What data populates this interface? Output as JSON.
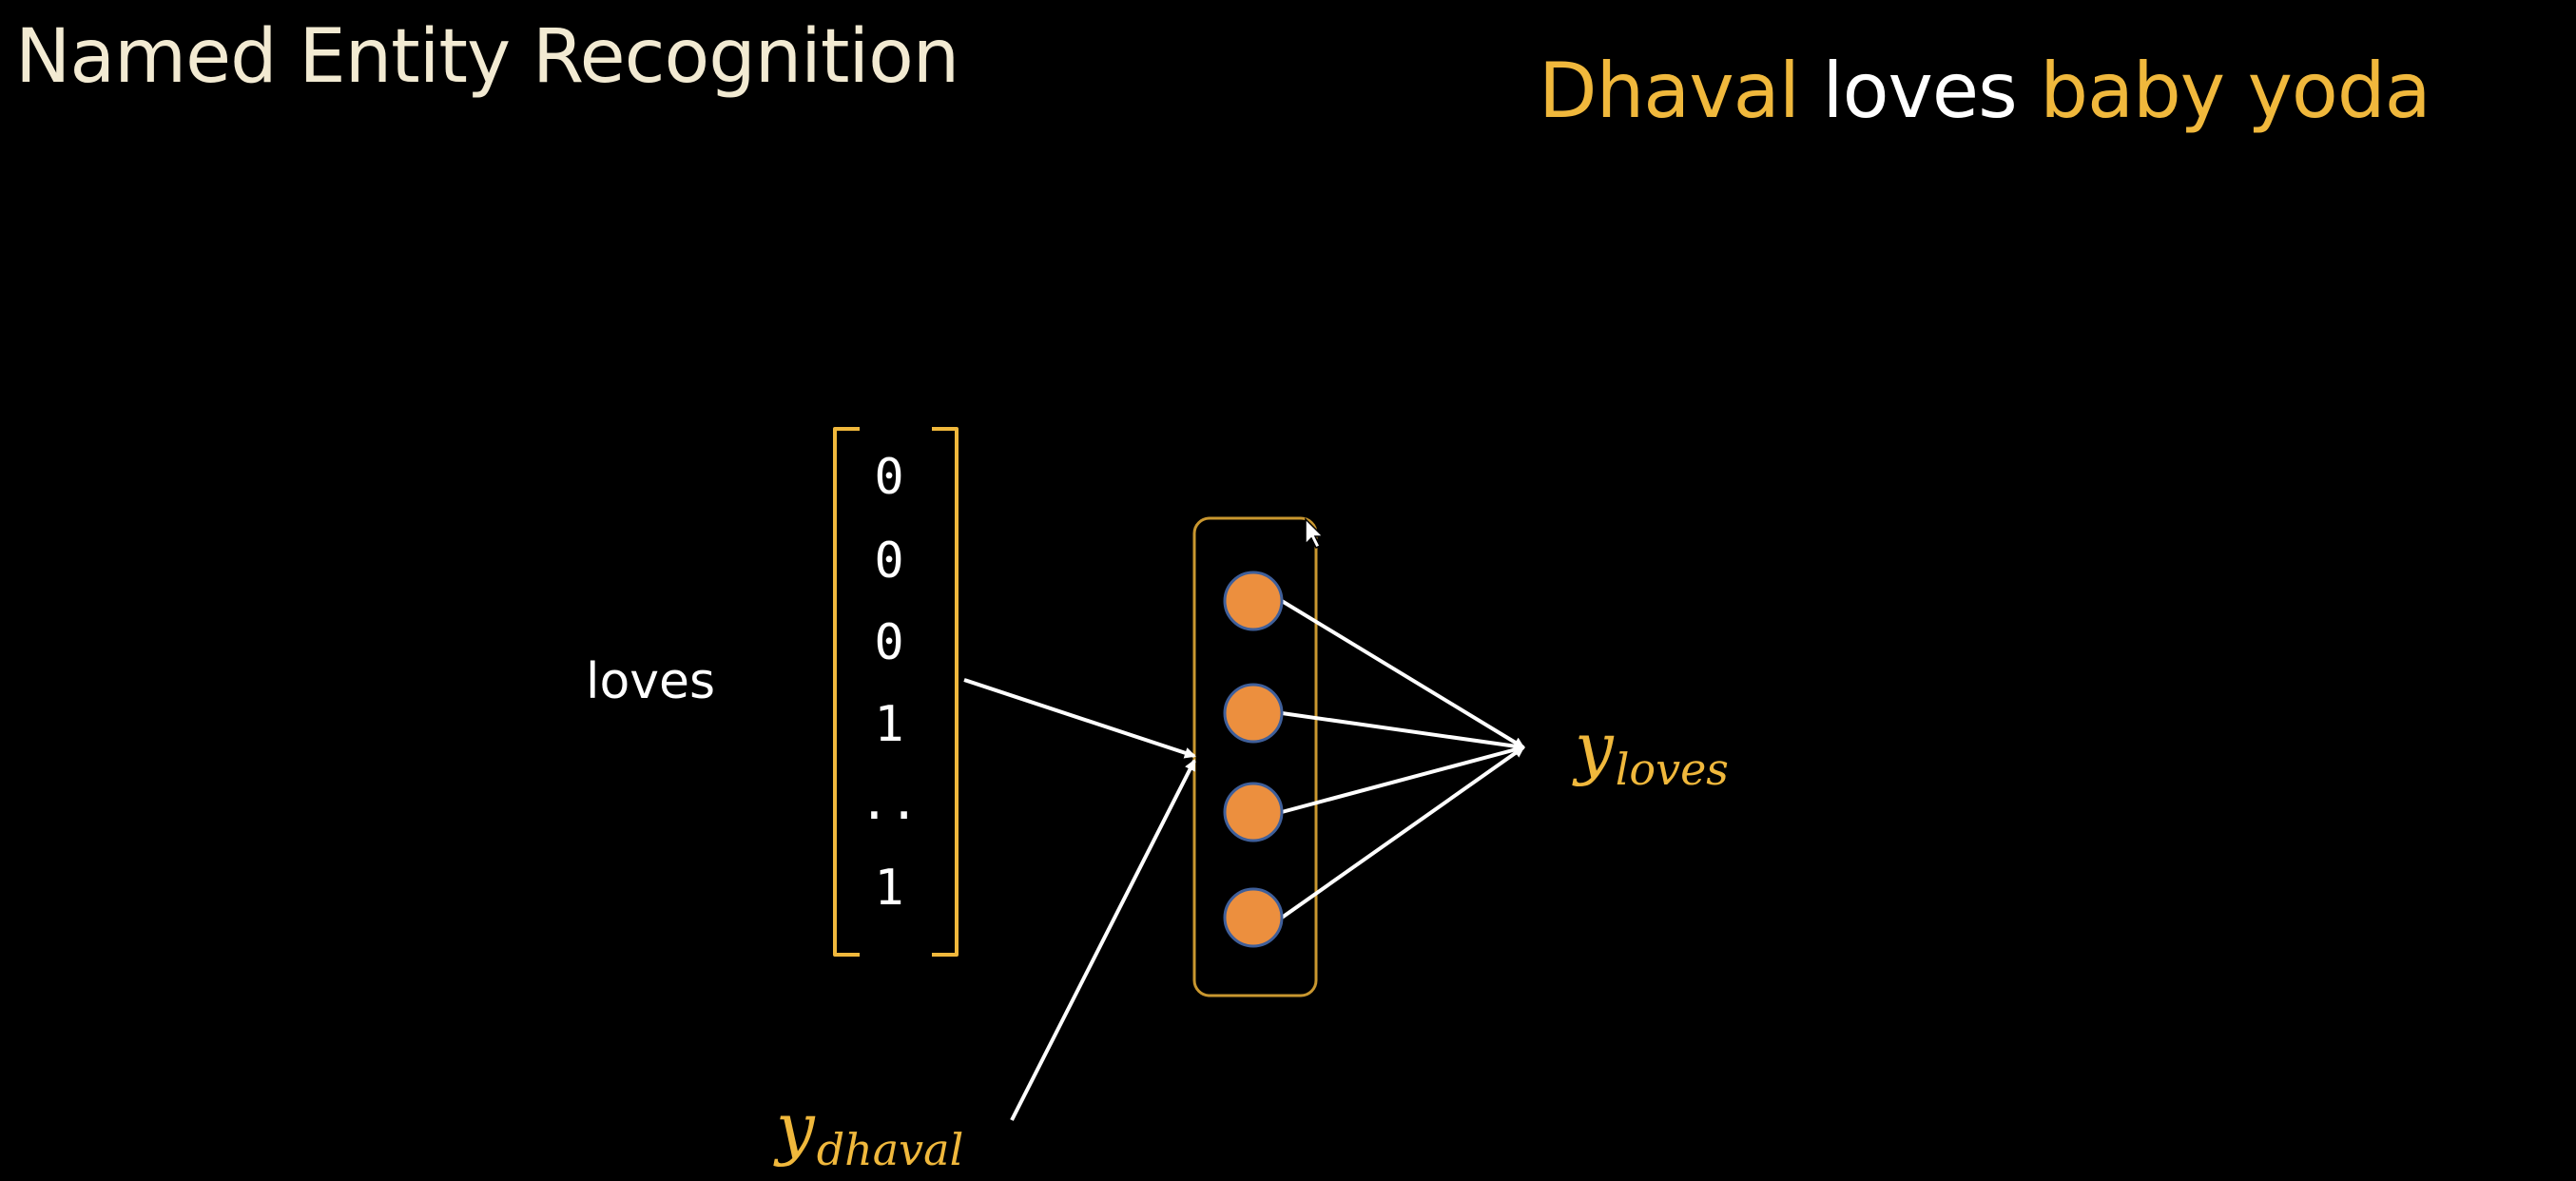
{
  "title": "Named Entity Recognition",
  "sentence": {
    "words": [
      {
        "text": "Dhaval",
        "entity": true
      },
      {
        "text": " loves ",
        "entity": false
      },
      {
        "text": "baby yoda",
        "entity": true
      }
    ]
  },
  "input_word": "loves",
  "input_vector": [
    "0",
    "0",
    "0",
    "1",
    "..",
    "1"
  ],
  "hidden_neuron_count": 4,
  "output_label": {
    "symbol": "y",
    "subscript": "loves"
  },
  "previous_output_label": {
    "symbol": "y",
    "subscript": "dhaval"
  },
  "colors": {
    "background": "#000000",
    "title_text": "#f2ead2",
    "entity_word": "#f0b83c",
    "plain_text": "#ffffff",
    "bracket": "#f0b83c",
    "layer_border": "#c9972f",
    "neuron_fill": "#ec8f3e",
    "neuron_stroke": "#3f5f9a",
    "arrow": "#ffffff",
    "math_label": "#f0b83c"
  }
}
